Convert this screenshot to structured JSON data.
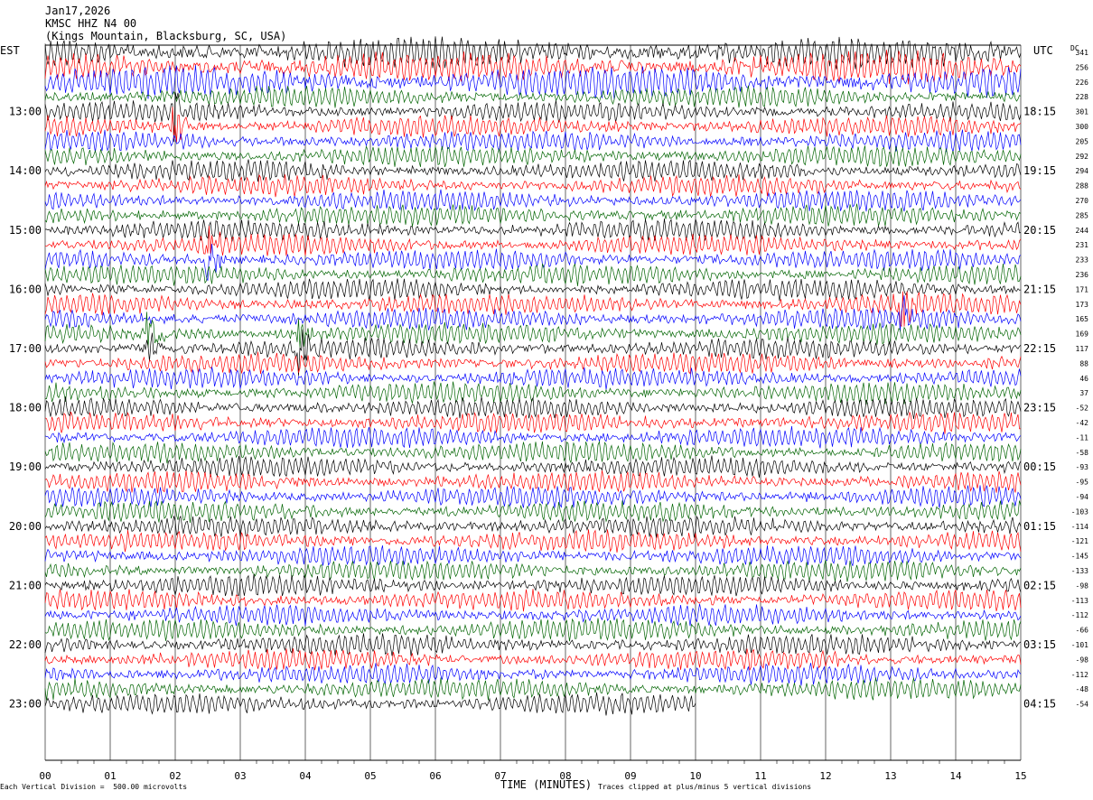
{
  "header": {
    "date": "Jan17,2026",
    "station": "KMSC HHZ N4 00",
    "location": "(Kings Mountain, Blacksburg, SC, USA)"
  },
  "left_tz": "EST",
  "right_tz": "UTC",
  "dc_label": "DC",
  "footer": {
    "vertical_division": "Each Vertical Division =  500.00 microvolts",
    "xlabel": "TIME (MINUTES)",
    "clip_note": "Traces clipped at plus/minus 5 vertical divisions"
  },
  "colors": {
    "cycle": [
      "#000000",
      "#ff0000",
      "#0000ff",
      "#006400"
    ],
    "grid": "#000000"
  },
  "chart_data": {
    "type": "line",
    "xlabel": "TIME (MINUTES)",
    "xlim": [
      0,
      15
    ],
    "x_ticks": [
      "00",
      "01",
      "02",
      "03",
      "04",
      "05",
      "06",
      "07",
      "08",
      "09",
      "10",
      "11",
      "12",
      "13",
      "14",
      "15"
    ],
    "trace_count": 45,
    "trace_minutes": 15,
    "last_trace_end_minute": 10,
    "left_hour_labels": [
      "13:00",
      "14:00",
      "15:00",
      "16:00",
      "17:00",
      "18:00",
      "19:00",
      "20:00",
      "21:00",
      "22:00",
      "23:00"
    ],
    "right_hour_labels": [
      "18:15",
      "19:15",
      "20:15",
      "21:15",
      "22:15",
      "23:15",
      "00:15",
      "01:15",
      "02:15",
      "03:15",
      "04:15"
    ],
    "dc_offsets": [
      341,
      256,
      226,
      228,
      301,
      300,
      205,
      292,
      294,
      288,
      270,
      285,
      244,
      231,
      233,
      236,
      171,
      173,
      165,
      169,
      117,
      88,
      46,
      37,
      -52,
      -42,
      -11,
      -58,
      -93,
      -95,
      -94,
      -103,
      -114,
      -121,
      -145,
      -133,
      -98,
      -113,
      -112,
      -66,
      -101,
      -98,
      -112,
      -48,
      -54
    ],
    "events": [
      {
        "trace": 4,
        "minute": 2.0,
        "label": ""
      },
      {
        "trace": 13,
        "minute": 2.5,
        "label": ""
      },
      {
        "trace": 19,
        "minute": 1.6,
        "label": ""
      },
      {
        "trace": 19,
        "minute": 3.9,
        "label": ""
      },
      {
        "trace": 17,
        "minute": 13.2,
        "label": ""
      }
    ]
  }
}
